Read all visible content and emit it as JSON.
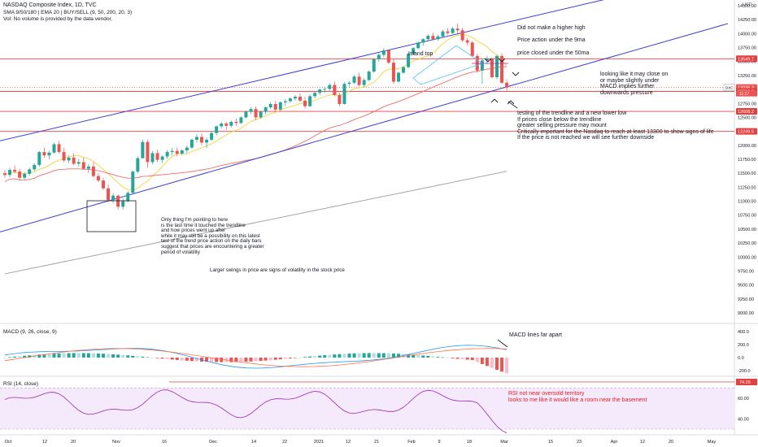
{
  "header": {
    "title": "NASDAQ Composite Index, 1D, TVC",
    "indicators": "SMA 9/50/180 | EMA 20 | BUY/SELL (9, 50, 200, 20, 3)",
    "volume_note": "Vol: No volume is provided by the data vendor."
  },
  "currency": "USD",
  "colors": {
    "up": "#26a69a",
    "down": "#ef5350",
    "trend": "#3f3fd0",
    "hline": "#e34040",
    "sma9": "#f2d43b",
    "sma50": "#ef6c6c",
    "sma180": "#9e9e9e",
    "macd": "#2196f3",
    "signal": "#ff7043",
    "rsi": "#9c27b0",
    "rsi_band": "#f4eafb"
  },
  "price_axis": {
    "ticks": [
      "14500.00",
      "14250.00",
      "14000.00",
      "13750.00",
      "13500.00",
      "13250.00",
      "13000.00",
      "12750.00",
      "12500.00",
      "12250.00",
      "12000.00",
      "11750.00",
      "11500.00",
      "11250.00",
      "11000.00",
      "10750.00",
      "10500.00",
      "10250.00",
      "10000.00",
      "9750.00",
      "9500.00",
      "9250.00",
      "9000.00"
    ],
    "tags": [
      {
        "value": "13549.7",
        "color": "#e34040"
      },
      {
        "value": "13036.3",
        "color": "#ef5350"
      },
      {
        "value": "12966.9",
        "color": "#e34040"
      },
      {
        "value": "12608.2",
        "color": "#e34040"
      },
      {
        "value": "12249.5",
        "color": "#e34040"
      }
    ],
    "dxc_label": "DXC",
    "countdown": "11:17"
  },
  "macd": {
    "label": "MACD (9, 26, close, 9)",
    "ticks": [
      "400.0",
      "200.0",
      "0.0",
      "-200.0"
    ]
  },
  "rsi": {
    "label": "RSI (14, close)",
    "ticks": [
      "60.00",
      "40.00"
    ],
    "current": "74.26"
  },
  "x_axis": {
    "labels": [
      "Oct",
      "12",
      "20",
      "Nov",
      "16",
      "Dec",
      "14",
      "22",
      "2021",
      "12",
      "21",
      "Feb",
      "9",
      "18",
      "Mar",
      "15",
      "23",
      "Apr",
      "12",
      "20",
      "May"
    ]
  },
  "annotations": {
    "higher_high": "Did not make a higher high",
    "ma9": "Price action under the 9ma",
    "ma50": "price closed under the 50ma",
    "island_top": "Island top",
    "macd_close": "looking like it may close on\nor maybe slightly under\nMACD implies further\ndownwards pressure",
    "trendline": "testing of the trendline and a new lower low\nIf prices close below the trendline\ngreater selling pressure may mount\nCritically important for the Nasdaq to reach at least 13300 to show signs of life\nIf the price is not reached we will see further downside",
    "only_thing": "Only thing I'm pointing to here\nis the last time it touched the trendline\nand how prices went up after\nwhile it may still be a possibility on this latest\ntest of the trend price action on the daily bars\nsuggest that prices are encountering a greater\nperiod of volatility",
    "volatility": "Larger swings in price are signs of volatility in the stock price",
    "macd_apart": "MACD lines far apart",
    "rsi_note": "RSI not near oversold territory\nlooks to me like it would like a room near the basement"
  },
  "chart_data": {
    "type": "candlestick",
    "title": "NASDAQ Composite Index, 1D, TVC",
    "ylabel": "USD",
    "ylim": [
      9000,
      14600
    ],
    "horizontal_levels": [
      13549.7,
      12966.9,
      12608.2,
      12249.5
    ],
    "candles": [
      [
        11500,
        11560,
        11420,
        11470
      ],
      [
        11470,
        11600,
        11430,
        11560
      ],
      [
        11560,
        11640,
        11500,
        11530
      ],
      [
        11530,
        11580,
        11380,
        11420
      ],
      [
        11420,
        11520,
        11390,
        11490
      ],
      [
        11490,
        11600,
        11460,
        11570
      ],
      [
        11570,
        11680,
        11540,
        11650
      ],
      [
        11650,
        11900,
        11620,
        11880
      ],
      [
        11880,
        11960,
        11780,
        11820
      ],
      [
        11820,
        11900,
        11750,
        11870
      ],
      [
        11870,
        12050,
        11850,
        12020
      ],
      [
        12020,
        12080,
        11850,
        11880
      ],
      [
        11880,
        11950,
        11700,
        11730
      ],
      [
        11730,
        11820,
        11680,
        11780
      ],
      [
        11780,
        11860,
        11640,
        11670
      ],
      [
        11670,
        11760,
        11620,
        11700
      ],
      [
        11700,
        11780,
        11560,
        11580
      ],
      [
        11580,
        11660,
        11500,
        11620
      ],
      [
        11620,
        11700,
        11420,
        11450
      ],
      [
        11450,
        11500,
        11340,
        11370
      ],
      [
        11370,
        11420,
        11200,
        11230
      ],
      [
        11230,
        11300,
        10980,
        11020
      ],
      [
        11020,
        11150,
        10960,
        11100
      ],
      [
        11100,
        11120,
        10850,
        10900
      ],
      [
        10900,
        11050,
        10850,
        11000
      ],
      [
        11000,
        11180,
        10980,
        11150
      ],
      [
        11150,
        11550,
        11130,
        11530
      ],
      [
        11530,
        11800,
        11500,
        11770
      ],
      [
        11770,
        12100,
        11760,
        12060
      ],
      [
        12060,
        12100,
        11600,
        11700
      ],
      [
        11700,
        11900,
        11660,
        11860
      ],
      [
        11860,
        11920,
        11700,
        11740
      ],
      [
        11740,
        11820,
        11680,
        11800
      ],
      [
        11800,
        11920,
        11760,
        11880
      ],
      [
        11880,
        11950,
        11820,
        11900
      ],
      [
        11900,
        11960,
        11800,
        11850
      ],
      [
        11850,
        11930,
        11820,
        11910
      ],
      [
        11910,
        12000,
        11860,
        11960
      ],
      [
        11960,
        12120,
        11940,
        12100
      ],
      [
        12100,
        12200,
        12050,
        12150
      ],
      [
        12150,
        12220,
        12000,
        12050
      ],
      [
        12050,
        12140,
        11950,
        12100
      ],
      [
        12100,
        12250,
        12080,
        12220
      ],
      [
        12220,
        12360,
        12180,
        12340
      ],
      [
        12340,
        12420,
        12300,
        12390
      ],
      [
        12390,
        12420,
        12280,
        12350
      ],
      [
        12350,
        12440,
        12320,
        12420
      ],
      [
        12420,
        12480,
        12350,
        12400
      ],
      [
        12400,
        12520,
        12380,
        12500
      ],
      [
        12500,
        12620,
        12480,
        12600
      ],
      [
        12600,
        12680,
        12560,
        12650
      ],
      [
        12650,
        12700,
        12450,
        12500
      ],
      [
        12500,
        12620,
        12480,
        12600
      ],
      [
        12600,
        12700,
        12560,
        12680
      ],
      [
        12680,
        12780,
        12650,
        12740
      ],
      [
        12740,
        12800,
        12600,
        12640
      ],
      [
        12640,
        12790,
        12620,
        12770
      ],
      [
        12770,
        12830,
        12700,
        12790
      ],
      [
        12790,
        12860,
        12760,
        12840
      ],
      [
        12840,
        12900,
        12800,
        12870
      ],
      [
        12870,
        12930,
        12780,
        12800
      ],
      [
        12800,
        12870,
        12660,
        12700
      ],
      [
        12700,
        12910,
        12690,
        12880
      ],
      [
        12880,
        12960,
        12840,
        12940
      ],
      [
        12940,
        13020,
        12900,
        13000
      ],
      [
        13000,
        13050,
        12940,
        13010
      ],
      [
        13010,
        13110,
        12980,
        13080
      ],
      [
        13080,
        13140,
        12880,
        12900
      ],
      [
        12900,
        12940,
        12700,
        12740
      ],
      [
        12740,
        13130,
        12730,
        13100
      ],
      [
        13100,
        13150,
        13050,
        13120
      ],
      [
        13120,
        13260,
        13100,
        13230
      ],
      [
        13230,
        13300,
        13050,
        13080
      ],
      [
        13080,
        13200,
        13040,
        13170
      ],
      [
        13170,
        13340,
        13150,
        13320
      ],
      [
        13320,
        13560,
        13300,
        13540
      ],
      [
        13540,
        13650,
        13500,
        13620
      ],
      [
        13620,
        13740,
        13580,
        13700
      ],
      [
        13700,
        13720,
        13450,
        13480
      ],
      [
        13480,
        13550,
        13100,
        13140
      ],
      [
        13140,
        13320,
        13120,
        13300
      ],
      [
        13300,
        13420,
        13280,
        13400
      ],
      [
        13400,
        13660,
        13380,
        13640
      ],
      [
        13640,
        13760,
        13620,
        13740
      ],
      [
        13740,
        13860,
        13720,
        13840
      ],
      [
        13840,
        13920,
        13780,
        13900
      ],
      [
        13900,
        13990,
        13860,
        13960
      ],
      [
        13960,
        14020,
        13880,
        13900
      ],
      [
        13900,
        13980,
        13870,
        13950
      ],
      [
        13950,
        14070,
        13930,
        14040
      ],
      [
        14040,
        14100,
        13980,
        14010
      ],
      [
        14010,
        14120,
        13990,
        14090
      ],
      [
        14090,
        14180,
        14000,
        14060
      ],
      [
        14060,
        14100,
        13850,
        13880
      ],
      [
        13880,
        13920,
        13780,
        13840
      ],
      [
        13840,
        13870,
        13580,
        13600
      ],
      [
        13600,
        13640,
        13300,
        13340
      ],
      [
        13340,
        13560,
        13100,
        13520
      ],
      [
        13520,
        13600,
        13450,
        13550
      ],
      [
        13550,
        13570,
        13200,
        13220
      ],
      [
        13220,
        13620,
        13180,
        13600
      ],
      [
        13600,
        13650,
        13100,
        13120
      ],
      [
        13120,
        13180,
        12980,
        13036
      ]
    ]
  }
}
